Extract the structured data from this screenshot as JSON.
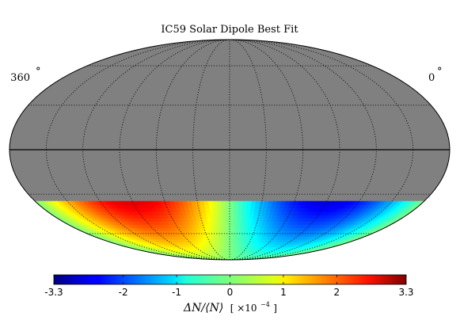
{
  "chart_data": {
    "type": "heatmap",
    "projection": "mollweide",
    "title": "IC59 Solar Dipole Best Fit",
    "lon_labels": {
      "left": "360",
      "right": "0",
      "degree_symbol": "°"
    },
    "lon_range_deg": [
      360,
      0
    ],
    "lat_range_deg": [
      -90,
      90
    ],
    "data_dec_range_deg": [
      -90,
      -35
    ],
    "masked_region": "dec > -35 (no data, grey)",
    "masked_color": "#808080",
    "grid": "dotted",
    "meridian_spacing_deg": 30,
    "parallel_spacing_deg": 30,
    "equator_line": "solid",
    "dipole": {
      "max_lon_deg": 270,
      "min_lon_deg": 90,
      "amplitude_e4": 3.3
    },
    "colorbar": {
      "colormap": "jet",
      "range": [
        -3.3,
        3.3
      ],
      "ticks": [
        "-3.3",
        "-2",
        "-1",
        "0",
        "1",
        "2",
        "3.3"
      ],
      "tick_values": [
        -3.3,
        -2,
        -1,
        0,
        1,
        2,
        3.3
      ],
      "label_main": "ΔN/⟨N⟩",
      "label_unit": "[ ×10",
      "label_exp": "−4",
      "label_close": " ]"
    }
  }
}
